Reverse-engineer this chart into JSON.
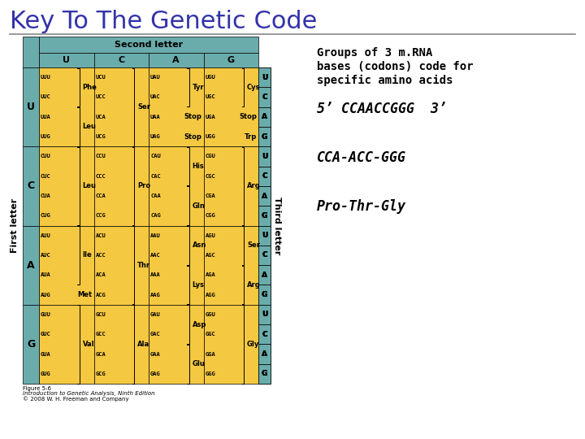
{
  "title": "Key To The Genetic Code",
  "title_color": "#3333AA",
  "title_fontsize": 22,
  "table_header_color": "#6aacac",
  "table_cell_color": "#f5c842",
  "table_first_col_color": "#6aacac",
  "second_letter_label": "Second letter",
  "first_letter_label": "First letter",
  "third_letter_label": "Third letter",
  "second_letters": [
    "U",
    "C",
    "A",
    "G"
  ],
  "first_letters": [
    "U",
    "C",
    "A",
    "G"
  ],
  "third_letters": [
    "U",
    "C",
    "A",
    "G"
  ],
  "cell_data": {
    "UU": {
      "codons": [
        "UUU",
        "UUC",
        "UUA",
        "UUG"
      ],
      "groups": [
        {
          "aa": "Phe",
          "rows": [
            0,
            1
          ]
        },
        {
          "aa": "Leu",
          "rows": [
            2,
            3
          ]
        }
      ]
    },
    "UC": {
      "codons": [
        "UCU",
        "UCC",
        "UCA",
        "UCG"
      ],
      "groups": [
        {
          "aa": "Ser",
          "rows": [
            0,
            1,
            2,
            3
          ]
        }
      ]
    },
    "UA": {
      "codons": [
        "UAU",
        "UAC",
        "UAA",
        "UAG"
      ],
      "groups": [
        {
          "aa": "Tyr",
          "rows": [
            0,
            1
          ]
        },
        {
          "aa": "Stop",
          "rows": [
            2
          ]
        },
        {
          "aa": "Stop",
          "rows": [
            3
          ]
        }
      ]
    },
    "UG": {
      "codons": [
        "UGU",
        "UGC",
        "UGA",
        "UGG"
      ],
      "groups": [
        {
          "aa": "Cys",
          "rows": [
            0,
            1
          ]
        },
        {
          "aa": "Stop",
          "rows": [
            2
          ]
        },
        {
          "aa": "Trp",
          "rows": [
            3
          ]
        }
      ]
    },
    "CU": {
      "codons": [
        "CUU",
        "CUC",
        "CUA",
        "CUG"
      ],
      "groups": [
        {
          "aa": "Leu",
          "rows": [
            0,
            1,
            2,
            3
          ]
        }
      ]
    },
    "CC": {
      "codons": [
        "CCU",
        "CCC",
        "CCA",
        "CCG"
      ],
      "groups": [
        {
          "aa": "Pro",
          "rows": [
            0,
            1,
            2,
            3
          ]
        }
      ]
    },
    "CA": {
      "codons": [
        "CAU",
        "CAC",
        "CAA",
        "CAG"
      ],
      "groups": [
        {
          "aa": "His",
          "rows": [
            0,
            1
          ]
        },
        {
          "aa": "Gln",
          "rows": [
            2,
            3
          ]
        }
      ]
    },
    "CG": {
      "codons": [
        "CGU",
        "CGC",
        "CGA",
        "CGG"
      ],
      "groups": [
        {
          "aa": "Arg",
          "rows": [
            0,
            1,
            2,
            3
          ]
        }
      ]
    },
    "AU": {
      "codons": [
        "AUU",
        "AUC",
        "AUA",
        "AUG"
      ],
      "groups": [
        {
          "aa": "Ile",
          "rows": [
            0,
            1,
            2
          ]
        },
        {
          "aa": "Met",
          "rows": [
            3
          ]
        }
      ]
    },
    "AC": {
      "codons": [
        "ACU",
        "ACC",
        "ACA",
        "ACG"
      ],
      "groups": [
        {
          "aa": "Thr",
          "rows": [
            0,
            1,
            2,
            3
          ]
        }
      ]
    },
    "AA": {
      "codons": [
        "AAU",
        "AAC",
        "AAA",
        "AAG"
      ],
      "groups": [
        {
          "aa": "Asn",
          "rows": [
            0,
            1
          ]
        },
        {
          "aa": "Lys",
          "rows": [
            2,
            3
          ]
        }
      ]
    },
    "AG": {
      "codons": [
        "AGU",
        "AGC",
        "AGA",
        "AGG"
      ],
      "groups": [
        {
          "aa": "Ser",
          "rows": [
            0,
            1
          ]
        },
        {
          "aa": "Arg",
          "rows": [
            2,
            3
          ]
        }
      ]
    },
    "GU": {
      "codons": [
        "GUU",
        "GUC",
        "GUA",
        "GUG"
      ],
      "groups": [
        {
          "aa": "Val",
          "rows": [
            0,
            1,
            2,
            3
          ]
        }
      ]
    },
    "GC": {
      "codons": [
        "GCU",
        "GCC",
        "GCA",
        "GCG"
      ],
      "groups": [
        {
          "aa": "Ala",
          "rows": [
            0,
            1,
            2,
            3
          ]
        }
      ]
    },
    "GA": {
      "codons": [
        "GAU",
        "GAC",
        "GAA",
        "GAG"
      ],
      "groups": [
        {
          "aa": "Asp",
          "rows": [
            0,
            1
          ]
        },
        {
          "aa": "Glu",
          "rows": [
            2,
            3
          ]
        }
      ]
    },
    "GG": {
      "codons": [
        "GGU",
        "GGC",
        "GGA",
        "GGG"
      ],
      "groups": [
        {
          "aa": "Gly",
          "rows": [
            0,
            1,
            2,
            3
          ]
        }
      ]
    }
  },
  "right_text_lines": [
    "Groups of 3 m.RNA",
    "bases (codons) code for",
    "specific amino acids"
  ],
  "right_text2": "5’ CCAACCGGG  3’",
  "right_text3": "CCA-ACC-GGG",
  "right_text4": "Pro-Thr-Gly",
  "footnote1": "Figure 5-6",
  "footnote2": "Introduction to Genetic Analysis, Ninth Edition",
  "footnote3": "© 2008 W. H. Freeman and Company"
}
